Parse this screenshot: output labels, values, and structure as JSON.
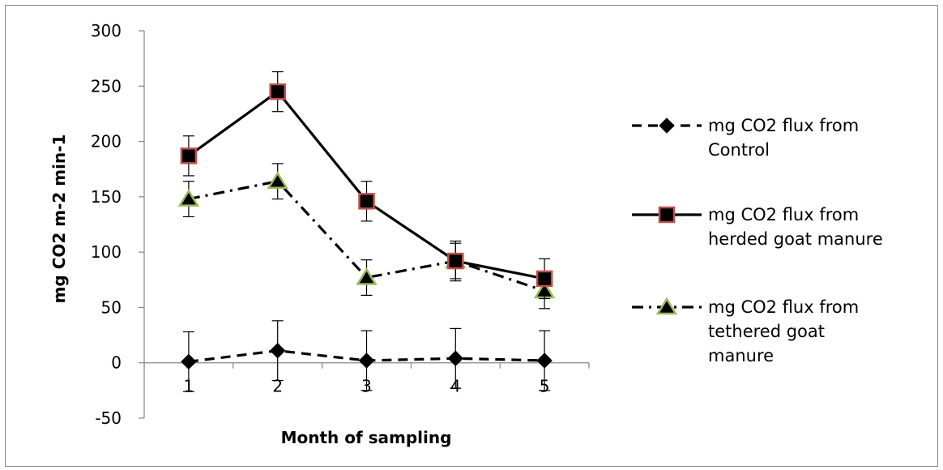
{
  "chart_data": {
    "type": "line",
    "title": "",
    "xlabel": "Month of sampling",
    "ylabel": "mg CO2 m-2 min-1",
    "categories": [
      "1",
      "2",
      "3",
      "4",
      "5"
    ],
    "ylim": [
      -50,
      300
    ],
    "yticks": [
      -50,
      0,
      50,
      100,
      150,
      200,
      250,
      300
    ],
    "grid": false,
    "legend_position": "right",
    "series": [
      {
        "name": "mg CO2 flux from Control",
        "name_lines": [
          "mg CO2 flux from",
          "Control"
        ],
        "values": [
          1,
          11,
          2,
          4,
          2
        ],
        "error": [
          27,
          27,
          27,
          27,
          27
        ],
        "marker": "diamond",
        "line_style": "dashed",
        "line_color": "#000000",
        "marker_fill": "#000000",
        "marker_edge": "#000000"
      },
      {
        "name": "mg CO2 flux from herded goat manure",
        "name_lines": [
          "mg CO2 flux from",
          "herded goat manure"
        ],
        "values": [
          187,
          245,
          146,
          92,
          76
        ],
        "error": [
          18,
          18,
          18,
          18,
          18
        ],
        "marker": "square",
        "line_style": "solid",
        "line_color": "#000000",
        "marker_fill": "#000000",
        "marker_edge": "#c0504d"
      },
      {
        "name": "mg CO2 flux from tethered goat manure",
        "name_lines": [
          "mg CO2 flux from",
          "tethered goat",
          "manure"
        ],
        "values": [
          148,
          164,
          77,
          92,
          65
        ],
        "error": [
          16,
          16,
          16,
          16,
          16
        ],
        "marker": "triangle",
        "line_style": "dash-dot",
        "line_color": "#000000",
        "marker_fill": "#000000",
        "marker_edge": "#9bbb59"
      }
    ]
  }
}
